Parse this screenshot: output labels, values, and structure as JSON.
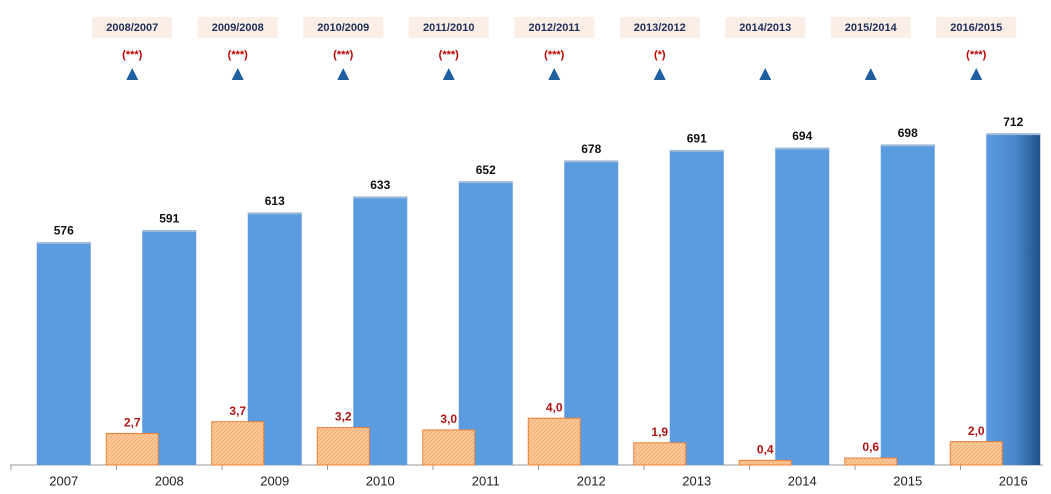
{
  "chart_data": {
    "type": "bar",
    "categories": [
      "2007",
      "2008",
      "2009",
      "2010",
      "2011",
      "2012",
      "2013",
      "2014",
      "2015",
      "2016"
    ],
    "series": [
      {
        "color": "#5b9be0",
        "values": [
          576,
          591,
          613,
          633,
          652,
          678,
          691,
          694,
          698,
          712
        ]
      },
      {
        "color": "#fbc89a",
        "axis": "y2",
        "values": [
          null,
          2.7,
          3.7,
          3.2,
          3.0,
          4.0,
          1.9,
          0.4,
          0.6,
          2.0
        ],
        "value_labels": [
          null,
          "2,7",
          "3,7",
          "3,2",
          "3,0",
          "4,0",
          "1,9",
          "0,4",
          "0,6",
          "2,0"
        ]
      }
    ],
    "ylim": [
      298,
      754
    ],
    "y2lim": [
      0,
      31.2
    ],
    "comparisons": [
      {
        "label": "2008/2007",
        "marker": "(***)"
      },
      {
        "label": "2009/2008",
        "marker": "(***)"
      },
      {
        "label": "2010/2009",
        "marker": "(***)"
      },
      {
        "label": "2011/2010",
        "marker": "(***)"
      },
      {
        "label": "2012/2011",
        "marker": "(***)"
      },
      {
        "label": "2013/2012",
        "marker": "(*)"
      },
      {
        "label": "2014/2013",
        "marker": null
      },
      {
        "label": "2015/2014",
        "marker": null
      },
      {
        "label": "2016/2015",
        "marker": "(***)"
      }
    ]
  }
}
